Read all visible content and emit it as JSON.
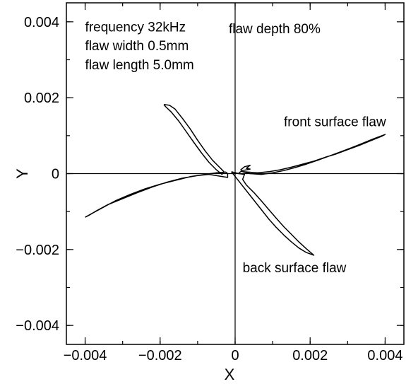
{
  "chart_data": {
    "type": "line",
    "xlabel": "X",
    "ylabel": "Y",
    "xlim": [
      -0.0045,
      0.0045
    ],
    "ylim": [
      -0.0045,
      0.0045
    ],
    "x_ticks": [
      {
        "value": -0.004,
        "label": "−0.004"
      },
      {
        "value": -0.002,
        "label": "−0.002"
      },
      {
        "value": 0,
        "label": "0"
      },
      {
        "value": 0.002,
        "label": "0.002"
      },
      {
        "value": 0.004,
        "label": "0.004"
      }
    ],
    "y_ticks": [
      {
        "value": 0.004,
        "label": "0.004"
      },
      {
        "value": 0.002,
        "label": "0.002"
      },
      {
        "value": 0,
        "label": "0"
      },
      {
        "value": -0.002,
        "label": "−0.002"
      },
      {
        "value": -0.004,
        "label": "−0.004"
      }
    ],
    "minor_step": 0.001,
    "grid": false,
    "zero_lines": true,
    "annotations": [
      {
        "text": "frequency 32kHz",
        "x": -0.004,
        "y": 0.00375
      },
      {
        "text": "flaw width 0.5mm",
        "x": -0.004,
        "y": 0.00325
      },
      {
        "text": "flaw length 5.0mm",
        "x": -0.004,
        "y": 0.00275
      },
      {
        "text": "flaw depth 80%",
        "x": -0.00017,
        "y": 0.0037
      },
      {
        "text": "front surface flaw",
        "x": 0.0013,
        "y": 0.00125
      },
      {
        "text": "back surface flaw",
        "x": 0.0002,
        "y": -0.0026
      }
    ],
    "series": [
      {
        "points": [
          [
            -0.004,
            -0.00115
          ],
          [
            -0.0038,
            -0.00104
          ],
          [
            -0.0035,
            -0.00088
          ],
          [
            -0.0032,
            -0.00072
          ],
          [
            -0.0028,
            -0.00055
          ],
          [
            -0.0024,
            -0.0004
          ],
          [
            -0.002,
            -0.00028
          ],
          [
            -0.0016,
            -0.00018
          ],
          [
            -0.0012,
            -8e-05
          ],
          [
            -0.0008,
            -2e-05
          ],
          [
            -0.0005,
            2e-05
          ],
          [
            -0.00025,
            4e-05
          ],
          [
            -0.0002,
            0.0
          ],
          [
            -0.0002,
            -0.0001
          ],
          [
            -0.00045,
            -6e-05
          ],
          [
            -0.0007,
            -2e-05
          ],
          [
            -0.001,
            -5e-05
          ],
          [
            -0.0014,
            -0.00012
          ],
          [
            -0.0018,
            -0.00022
          ],
          [
            -0.0022,
            -0.00035
          ],
          [
            -0.0026,
            -0.0005
          ],
          [
            -0.003,
            -0.00066
          ],
          [
            -0.0034,
            -0.00082
          ],
          [
            -0.0037,
            -0.00098
          ],
          [
            -0.0039,
            -0.0011
          ],
          [
            -0.004,
            -0.00115
          ]
        ]
      },
      {
        "points": [
          [
            -0.0019,
            0.00182
          ],
          [
            -0.00175,
            0.0018
          ],
          [
            -0.0016,
            0.0017
          ],
          [
            -0.0014,
            0.00145
          ],
          [
            -0.0012,
            0.00118
          ],
          [
            -0.001,
            0.00088
          ],
          [
            -0.0008,
            0.0006
          ],
          [
            -0.0006,
            0.00035
          ],
          [
            -0.0004,
            0.00015
          ],
          [
            -0.0003,
            5e-05
          ],
          [
            -0.00035,
            -2e-05
          ],
          [
            -0.0005,
            0.0001
          ],
          [
            -0.0007,
            0.0003
          ],
          [
            -0.0009,
            0.00055
          ],
          [
            -0.0011,
            0.00082
          ],
          [
            -0.0013,
            0.0011
          ],
          [
            -0.0015,
            0.00138
          ],
          [
            -0.0017,
            0.00162
          ],
          [
            -0.00185,
            0.00176
          ],
          [
            -0.0019,
            0.00182
          ]
        ]
      },
      {
        "points": [
          [
            0.0002,
            5e-05
          ],
          [
            0.0006,
            2e-05
          ],
          [
            0.0009,
            5e-05
          ],
          [
            0.0012,
            0.0001
          ],
          [
            0.0015,
            0.00017
          ],
          [
            0.0018,
            0.00025
          ],
          [
            0.0021,
            0.00033
          ],
          [
            0.0024,
            0.00043
          ],
          [
            0.0027,
            0.00052
          ],
          [
            0.003,
            0.00063
          ],
          [
            0.0033,
            0.00074
          ],
          [
            0.0036,
            0.00086
          ],
          [
            0.0039,
            0.00098
          ],
          [
            0.004,
            0.00103
          ],
          [
            0.0037,
            0.00092
          ],
          [
            0.0034,
            0.0008
          ],
          [
            0.0031,
            0.00068
          ],
          [
            0.0028,
            0.00057
          ],
          [
            0.0025,
            0.00046
          ],
          [
            0.0022,
            0.00035
          ],
          [
            0.0019,
            0.00025
          ],
          [
            0.0016,
            0.00016
          ],
          [
            0.0013,
            8e-05
          ],
          [
            0.001,
            2e-05
          ],
          [
            0.0007,
            -2e-05
          ],
          [
            0.0004,
            0.0
          ],
          [
            0.0002,
            5e-05
          ]
        ]
      },
      {
        "points": [
          [
            0.0002,
            5e-05
          ],
          [
            0.00015,
            0.0001
          ],
          [
            0.00025,
            0.00018
          ],
          [
            0.0004,
            0.00022
          ],
          [
            0.0003,
            0.00014
          ],
          [
            0.0004,
            0.00012
          ],
          [
            0.0002,
            8e-05
          ],
          [
            0.0001,
            2e-05
          ]
        ]
      },
      {
        "points": [
          [
            -0.0001,
            5e-05
          ],
          [
            0.0001,
            -0.0002
          ],
          [
            0.0003,
            -0.00045
          ],
          [
            0.0005,
            -0.0007
          ],
          [
            0.0007,
            -0.00095
          ],
          [
            0.0009,
            -0.0012
          ],
          [
            0.0011,
            -0.00142
          ],
          [
            0.0013,
            -0.00162
          ],
          [
            0.0015,
            -0.0018
          ],
          [
            0.0017,
            -0.00196
          ],
          [
            0.0019,
            -0.00208
          ],
          [
            0.0021,
            -0.00215
          ],
          [
            0.0019,
            -0.00198
          ],
          [
            0.0017,
            -0.0018
          ],
          [
            0.0015,
            -0.0016
          ],
          [
            0.0013,
            -0.0014
          ],
          [
            0.0011,
            -0.00118
          ],
          [
            0.0009,
            -0.00095
          ],
          [
            0.0007,
            -0.00072
          ],
          [
            0.0005,
            -0.0005
          ],
          [
            0.0003,
            -0.0003
          ],
          [
            0.0002,
            -0.00015
          ],
          [
            0.00025,
            -2e-05
          ],
          [
            0.0001,
            0.0
          ],
          [
            -0.0001,
            5e-05
          ]
        ]
      }
    ]
  }
}
